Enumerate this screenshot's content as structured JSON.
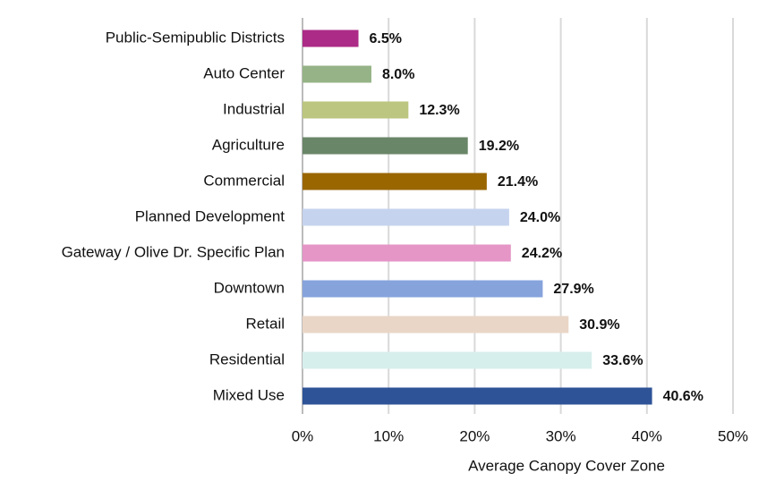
{
  "chart_data": {
    "type": "bar",
    "orientation": "horizontal",
    "x_label": "Average Canopy Cover Zone",
    "categories": [
      "Public-Semipublic Districts",
      "Auto Center",
      "Industrial",
      "Agriculture",
      "Commercial",
      "Planned Development",
      "Gateway / Olive Dr. Specific Plan",
      "Downtown",
      "Retail",
      "Residential",
      "Mixed Use"
    ],
    "values": [
      6.5,
      8.0,
      12.3,
      19.2,
      21.4,
      24.0,
      24.2,
      27.9,
      30.9,
      33.6,
      40.6
    ],
    "value_labels": [
      "6.5%",
      "8.0%",
      "12.3%",
      "19.2%",
      "21.4%",
      "24.0%",
      "24.2%",
      "27.9%",
      "30.9%",
      "33.6%",
      "40.6%"
    ],
    "colors": [
      "#ac2b86",
      "#95b386",
      "#bcc680",
      "#6a8668",
      "#996600",
      "#c5d3ee",
      "#e595c6",
      "#86a3dc",
      "#ead6c6",
      "#d7efec",
      "#2e5397"
    ],
    "xlim": [
      0,
      50
    ],
    "xticks": [
      {
        "value": 0,
        "label": "0%"
      },
      {
        "value": 10,
        "label": "10%"
      },
      {
        "value": 20,
        "label": "20%"
      },
      {
        "value": 30,
        "label": "30%"
      },
      {
        "value": 40,
        "label": "40%"
      },
      {
        "value": 50,
        "label": "50%"
      }
    ],
    "grid": true
  }
}
